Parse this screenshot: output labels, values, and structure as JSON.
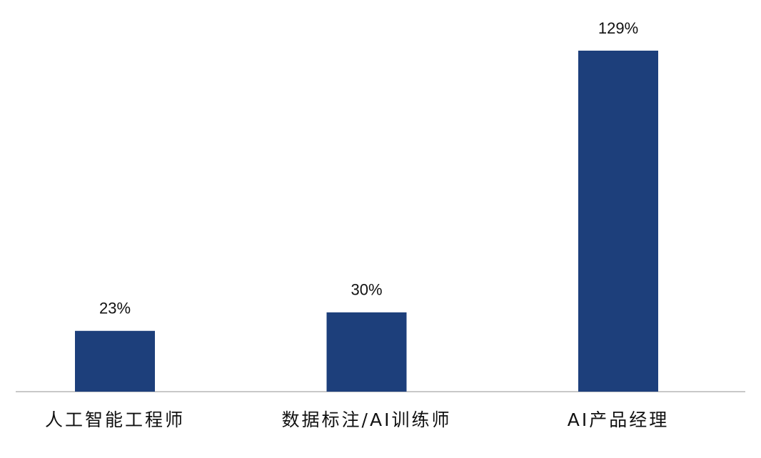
{
  "chart_data": {
    "type": "bar",
    "categories": [
      "人工智能工程师",
      "数据标注/AI训练师",
      "AI产品经理"
    ],
    "values": [
      23,
      30,
      129
    ],
    "value_labels": [
      "23%",
      "30%",
      "129%"
    ],
    "color": "#1d3f7b"
  }
}
